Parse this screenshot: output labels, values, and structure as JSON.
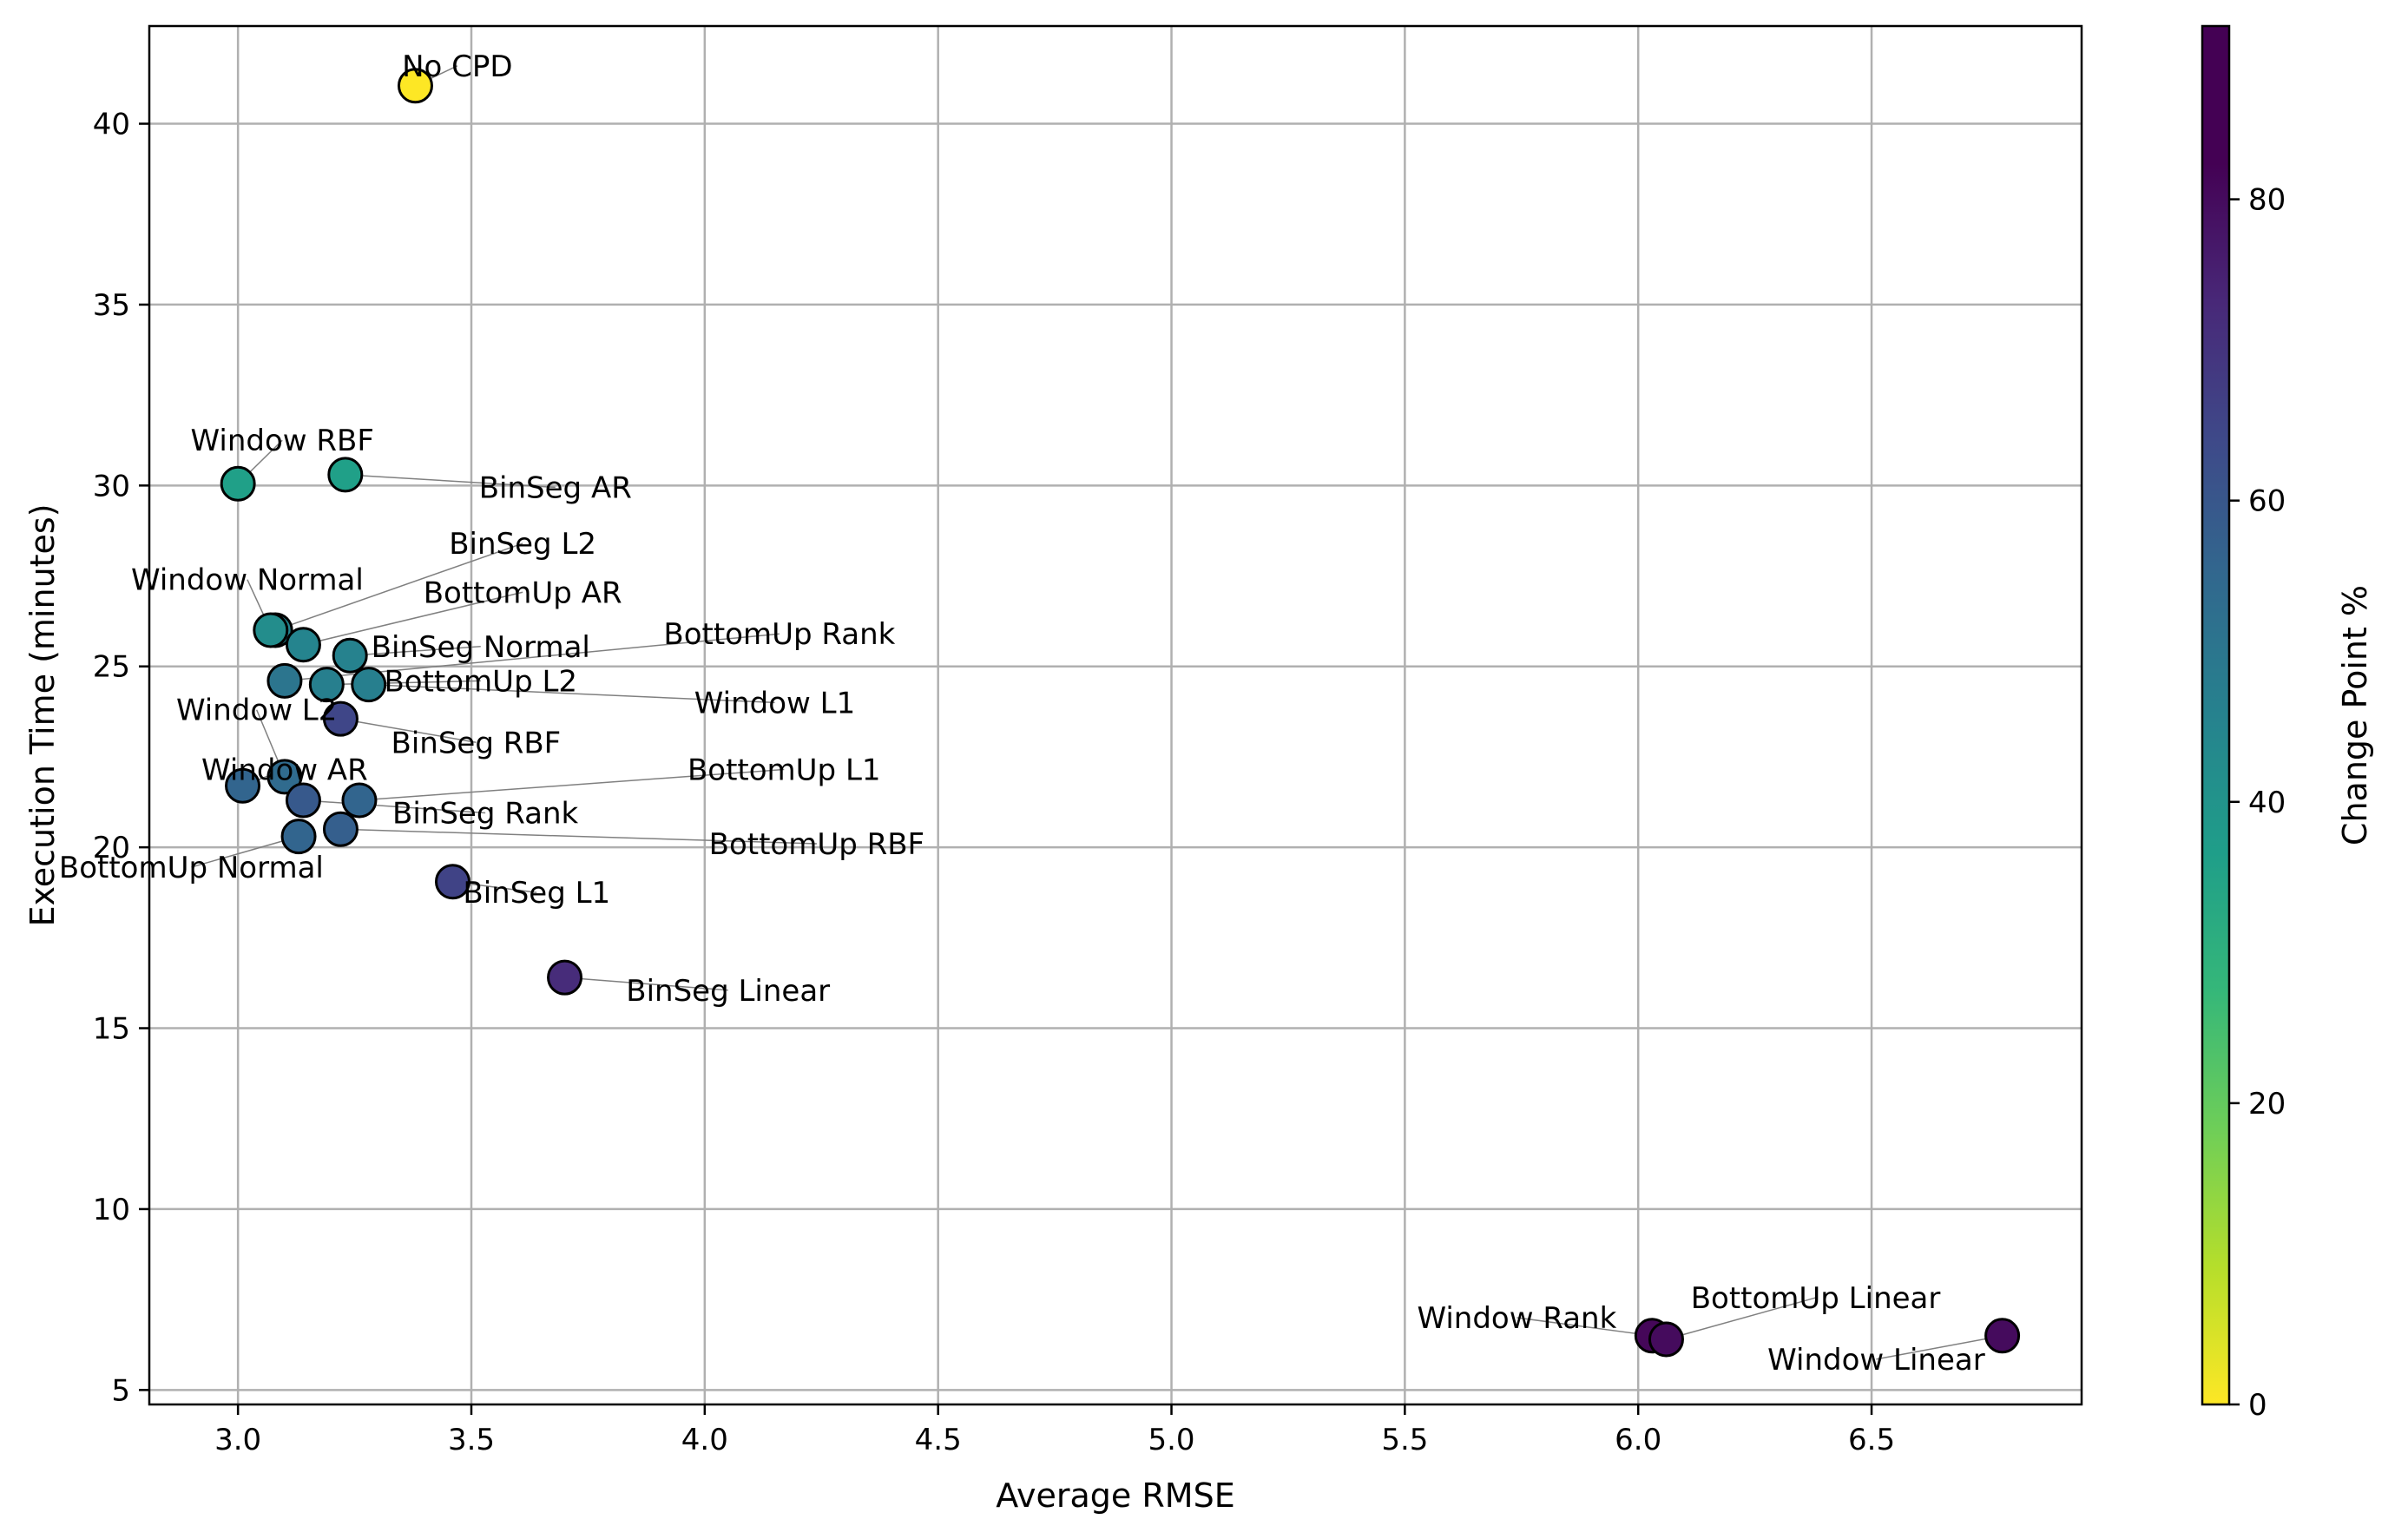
{
  "chart_data": {
    "type": "scatter",
    "xlabel": "Average RMSE",
    "ylabel": "Execution Time (minutes)",
    "xlim": [
      2.81,
      6.95
    ],
    "ylim": [
      4.6,
      42.7
    ],
    "xticks": [
      3.0,
      3.5,
      4.0,
      4.5,
      5.0,
      5.5,
      6.0,
      6.5
    ],
    "xtick_labels": [
      "3.0",
      "3.5",
      "4.0",
      "4.5",
      "5.0",
      "5.5",
      "6.0",
      "6.5"
    ],
    "yticks": [
      5,
      10,
      15,
      20,
      25,
      30,
      35,
      40
    ],
    "ytick_labels": [
      "5",
      "10",
      "15",
      "20",
      "25",
      "30",
      "35",
      "40"
    ],
    "grid": true,
    "colormap": "viridis_r",
    "colorbar": {
      "label": "Change Point %",
      "range": [
        0,
        91.5
      ],
      "ticks": [
        0,
        20,
        40,
        60,
        80
      ],
      "tick_labels": [
        "0",
        "20",
        "40",
        "60",
        "80"
      ]
    },
    "points": [
      {
        "name": "No CPD",
        "x": 3.38,
        "y": 41.05,
        "c": 0,
        "label_pos": [
          3.47,
          41.6
        ]
      },
      {
        "name": "Window RBF",
        "x": 3.0,
        "y": 30.05,
        "c": 40,
        "label_pos": [
          3.095,
          31.25
        ]
      },
      {
        "name": "BinSeg AR",
        "x": 3.23,
        "y": 30.3,
        "c": 40,
        "label_pos": [
          3.68,
          29.95
        ]
      },
      {
        "name": "BinSeg L2",
        "x": 3.08,
        "y": 26.0,
        "c": 50,
        "label_pos": [
          3.61,
          28.4
        ]
      },
      {
        "name": "Window Normal",
        "x": 3.07,
        "y": 26.0,
        "c": 47,
        "label_pos": [
          3.02,
          27.4
        ]
      },
      {
        "name": "BottomUp AR",
        "x": 3.14,
        "y": 25.6,
        "c": 50,
        "label_pos": [
          3.61,
          27.05
        ]
      },
      {
        "name": "BinSeg Normal",
        "x": 3.24,
        "y": 25.3,
        "c": 51,
        "label_pos": [
          3.52,
          25.55
        ]
      },
      {
        "name": "BottomUp Rank",
        "x": 3.1,
        "y": 24.6,
        "c": 56,
        "label_pos": [
          4.16,
          25.9
        ]
      },
      {
        "name": "BottomUp L2",
        "x": 3.19,
        "y": 24.5,
        "c": 52,
        "label_pos": [
          3.52,
          24.6
        ]
      },
      {
        "name": "Window L1",
        "x": 3.28,
        "y": 24.5,
        "c": 52,
        "label_pos": [
          4.15,
          24.0
        ]
      },
      {
        "name": "BinSeg RBF",
        "x": 3.22,
        "y": 23.55,
        "c": 72,
        "label_pos": [
          3.51,
          22.9
        ]
      },
      {
        "name": "Window L2",
        "x": 3.1,
        "y": 21.95,
        "c": 60,
        "label_pos": [
          3.04,
          23.8
        ]
      },
      {
        "name": "Window AR",
        "x": 3.01,
        "y": 21.7,
        "c": 62,
        "label_pos": [
          3.1,
          22.15
        ]
      },
      {
        "name": "BottomUp L1",
        "x": 3.26,
        "y": 21.3,
        "c": 62,
        "label_pos": [
          4.17,
          22.15
        ]
      },
      {
        "name": "BinSeg Rank",
        "x": 3.14,
        "y": 21.3,
        "c": 66,
        "label_pos": [
          3.53,
          20.95
        ]
      },
      {
        "name": "BottomUp RBF",
        "x": 3.22,
        "y": 20.5,
        "c": 64,
        "label_pos": [
          4.24,
          20.1
        ]
      },
      {
        "name": "BottomUp Normal",
        "x": 3.13,
        "y": 20.3,
        "c": 62,
        "label_pos": [
          2.9,
          19.45
        ]
      },
      {
        "name": "BinSeg L1",
        "x": 3.46,
        "y": 19.05,
        "c": 73,
        "label_pos": [
          3.64,
          18.75
        ]
      },
      {
        "name": "BinSeg Linear",
        "x": 3.7,
        "y": 16.4,
        "c": 80,
        "label_pos": [
          4.05,
          16.05
        ]
      },
      {
        "name": "Window Rank",
        "x": 6.03,
        "y": 6.5,
        "c": 90,
        "label_pos": [
          5.74,
          7.0
        ]
      },
      {
        "name": "BottomUp Linear",
        "x": 6.06,
        "y": 6.4,
        "c": 89,
        "label_pos": [
          6.38,
          7.55
        ]
      },
      {
        "name": "Window Linear",
        "x": 6.78,
        "y": 6.5,
        "c": 89,
        "label_pos": [
          6.51,
          5.85
        ]
      }
    ]
  }
}
